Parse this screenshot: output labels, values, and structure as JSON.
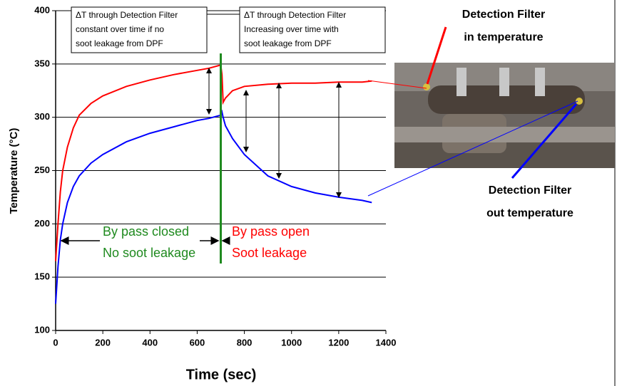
{
  "chart_data": {
    "type": "line",
    "x_label": "Time (sec)",
    "y_label": "Temperature (°C)",
    "x": [
      0,
      10,
      20,
      30,
      50,
      75,
      100,
      150,
      200,
      300,
      400,
      500,
      600,
      650,
      700,
      705,
      710,
      720,
      750,
      800,
      900,
      1000,
      1100,
      1200,
      1300,
      1340
    ],
    "series": [
      {
        "name": "Detection Filter in temperature",
        "color": "#ff0000",
        "values": [
          165,
          200,
          230,
          250,
          272,
          290,
          302,
          313,
          320,
          329,
          335,
          340,
          344,
          346,
          349,
          340,
          314,
          318,
          325,
          329,
          331,
          332,
          332,
          333,
          333,
          334
        ]
      },
      {
        "name": "Detection Filter out temperature",
        "color": "#0000ff",
        "values": [
          125,
          160,
          185,
          200,
          220,
          235,
          245,
          257,
          265,
          277,
          285,
          291,
          297,
          299,
          302,
          305,
          300,
          292,
          280,
          265,
          245,
          235,
          229,
          225,
          222,
          220
        ]
      }
    ],
    "xlim": [
      0,
      1400
    ],
    "xticks": [
      0,
      200,
      400,
      600,
      800,
      1000,
      1200,
      1400
    ],
    "ylim": [
      100,
      400
    ],
    "yticks": [
      100,
      150,
      200,
      250,
      300,
      350,
      400
    ],
    "grid": true,
    "vline": {
      "x": 700,
      "color": "#1f8a1f"
    },
    "annotations": {
      "box_left": [
        "ΔT through Detection Filter",
        "constant over time if no",
        "soot leakage from DPF"
      ],
      "box_right": [
        "ΔT through Detection Filter",
        "Increasing over time with",
        "soot leakage from DPF"
      ],
      "closed": [
        "By pass closed",
        "No soot leakage"
      ],
      "open": [
        "By pass open",
        "Soot leakage"
      ]
    }
  }
}
